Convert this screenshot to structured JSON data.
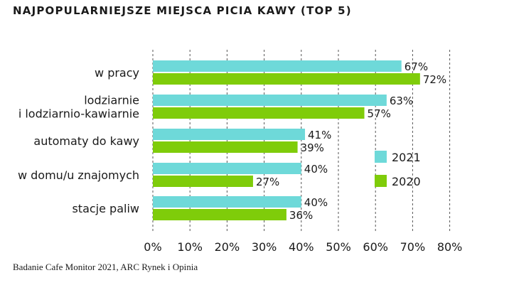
{
  "chart_data": {
    "type": "bar",
    "orientation": "horizontal",
    "title": "NAJPOPULARNIEJSZE MIEJSCA PICIA KAWY (TOP 5)",
    "categories": [
      [
        "w pracy"
      ],
      [
        "lodziarnie",
        "i lodziarnio-kawiarnie"
      ],
      [
        "automaty do kawy"
      ],
      [
        "w domu/u znajomych"
      ],
      [
        "stacje paliw"
      ]
    ],
    "series": [
      {
        "name": "2021",
        "color": "#6ed9d9",
        "values": [
          67,
          63,
          41,
          40,
          40
        ]
      },
      {
        "name": "2020",
        "color": "#7fcc0a",
        "values": [
          72,
          57,
          39,
          27,
          36
        ]
      }
    ],
    "value_suffix": "%",
    "xlim": [
      0,
      80
    ],
    "xticks": [
      0,
      10,
      20,
      30,
      40,
      50,
      60,
      70,
      80
    ],
    "xtick_labels": [
      "0%",
      "10%",
      "20%",
      "30%",
      "40%",
      "50%",
      "60%",
      "70%",
      "80%"
    ],
    "grid": true,
    "legend_position": "right"
  },
  "source_note": "Badanie Cafe Monitor 2021, ARC Rynek i Opinia"
}
